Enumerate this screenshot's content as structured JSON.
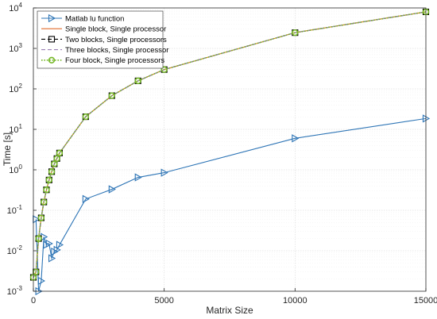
{
  "chart_data": {
    "type": "line",
    "xlabel": "Matrix Size",
    "ylabel": "Time [s]",
    "xlim": [
      0,
      15000
    ],
    "ylim": [
      0.001,
      10000
    ],
    "y_scale": "log",
    "grid": true,
    "legend_position": "top-left",
    "x_ticks": [
      "0",
      "5000",
      "10000",
      "15000"
    ],
    "x_tick_values": [
      0,
      5000,
      10000,
      15000
    ],
    "y_ticks": [
      {
        "base": "10",
        "exp": "-3",
        "value": 0.001
      },
      {
        "base": "10",
        "exp": "-2",
        "value": 0.01
      },
      {
        "base": "10",
        "exp": "-1",
        "value": 0.1
      },
      {
        "base": "10",
        "exp": "0",
        "value": 1
      },
      {
        "base": "10",
        "exp": "1",
        "value": 10
      },
      {
        "base": "10",
        "exp": "2",
        "value": 100
      },
      {
        "base": "10",
        "exp": "3",
        "value": 1000
      },
      {
        "base": "10",
        "exp": "4",
        "value": 10000
      }
    ],
    "series": [
      {
        "name": "Matlab lu function",
        "color": "#2e75b6",
        "marker": "triangle-right",
        "dash": "solid",
        "x": [
          100,
          200,
          300,
          400,
          500,
          600,
          700,
          800,
          900,
          1000,
          2000,
          3000,
          4000,
          5000,
          10000,
          15000
        ],
        "y": [
          0.06,
          0.001,
          0.0018,
          0.022,
          0.014,
          0.015,
          0.0065,
          0.0095,
          0.0105,
          0.014,
          0.19,
          0.33,
          0.65,
          0.85,
          6,
          18.5
        ]
      },
      {
        "name": "Single block, Single processor",
        "color": "#e06c2c",
        "marker": "none",
        "dash": "solid",
        "x": [
          0,
          100,
          200,
          300,
          400,
          500,
          600,
          700,
          800,
          900,
          1000,
          2000,
          3000,
          4000,
          5000,
          10000,
          15000
        ],
        "y": [
          0.0022,
          0.003,
          0.02,
          0.065,
          0.16,
          0.32,
          0.56,
          0.9,
          1.4,
          1.9,
          2.6,
          20.5,
          68,
          158,
          300,
          2450,
          8000
        ]
      },
      {
        "name": "Two blocks, Single processors",
        "color": "#000000",
        "marker": "square",
        "dash": "dashed",
        "x": [
          0,
          100,
          200,
          300,
          400,
          500,
          600,
          700,
          800,
          900,
          1000,
          2000,
          3000,
          4000,
          5000,
          10000,
          15000
        ],
        "y": [
          0.0022,
          0.003,
          0.02,
          0.065,
          0.16,
          0.32,
          0.56,
          0.9,
          1.4,
          1.9,
          2.6,
          20.5,
          68,
          158,
          300,
          2450,
          8000
        ]
      },
      {
        "name": "Three blocks, Single processor",
        "color": "#9b7fb5",
        "marker": "none",
        "dash": "dashed",
        "x": [
          0,
          100,
          200,
          300,
          400,
          500,
          600,
          700,
          800,
          900,
          1000,
          2000,
          3000,
          4000,
          5000,
          10000,
          15000
        ],
        "y": [
          0.0022,
          0.003,
          0.02,
          0.065,
          0.16,
          0.32,
          0.56,
          0.9,
          1.4,
          1.9,
          2.6,
          20.5,
          68,
          158,
          300,
          2450,
          8000
        ]
      },
      {
        "name": "Four block, Single processors",
        "color": "#77b82a",
        "marker": "circle",
        "dash": "dotted",
        "x": [
          0,
          100,
          200,
          300,
          400,
          500,
          600,
          700,
          800,
          900,
          1000,
          2000,
          3000,
          4000,
          5000,
          10000,
          15000
        ],
        "y": [
          0.0022,
          0.003,
          0.02,
          0.065,
          0.16,
          0.32,
          0.56,
          0.9,
          1.4,
          1.9,
          2.6,
          20.5,
          68,
          158,
          300,
          2450,
          8000
        ]
      }
    ]
  }
}
